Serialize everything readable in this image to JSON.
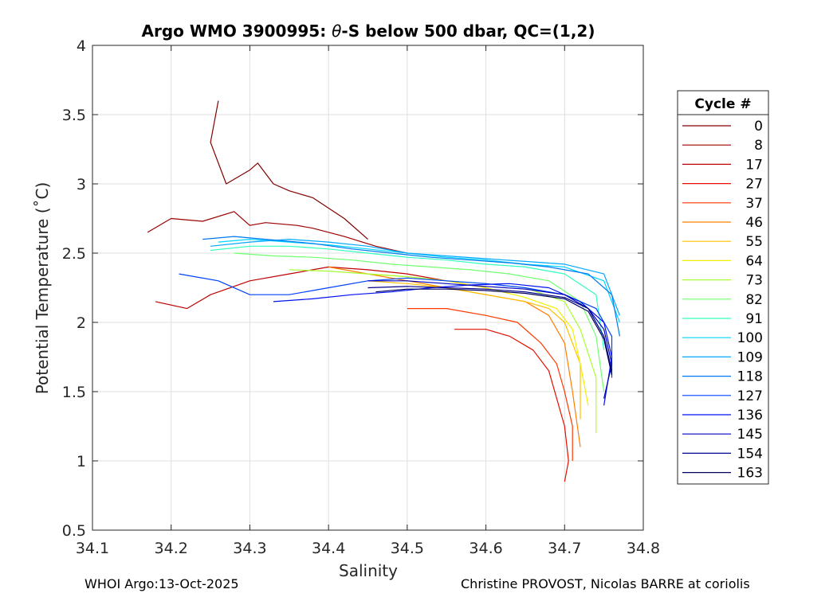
{
  "chart_data": {
    "type": "line",
    "title_prefix": "Argo WMO 3900995: ",
    "title_theta": "θ",
    "title_suffix": "-S below 500 dbar,  QC=(1,2)",
    "xlabel": "Salinity",
    "ylabel": "Potential Temperature (˚C)",
    "xlim": [
      34.1,
      34.8
    ],
    "ylim": [
      0.5,
      4
    ],
    "xticks": [
      34.1,
      34.2,
      34.3,
      34.4,
      34.5,
      34.6,
      34.7,
      34.8
    ],
    "yticks": [
      0.5,
      1,
      1.5,
      2,
      2.5,
      3,
      3.5,
      4
    ],
    "xtick_labels": [
      "34.1",
      "34.2",
      "34.3",
      "34.4",
      "34.5",
      "34.6",
      "34.7",
      "34.8"
    ],
    "ytick_labels": [
      "0.5",
      "1",
      "1.5",
      "2",
      "2.5",
      "3",
      "3.5",
      "4"
    ],
    "grid": true,
    "legend_title": "Cycle #",
    "legend_position": "right, outside",
    "legend": [
      {
        "cycle": "0",
        "color": "#800000"
      },
      {
        "cycle": "8",
        "color": "#9b0000"
      },
      {
        "cycle": "17",
        "color": "#bf0000"
      },
      {
        "cycle": "27",
        "color": "#e31000"
      },
      {
        "cycle": "37",
        "color": "#ff3700"
      },
      {
        "cycle": "46",
        "color": "#ff7f00"
      },
      {
        "cycle": "55",
        "color": "#ffbf00"
      },
      {
        "cycle": "64",
        "color": "#f0f000"
      },
      {
        "cycle": "73",
        "color": "#a6ff33"
      },
      {
        "cycle": "82",
        "color": "#6fff6f"
      },
      {
        "cycle": "91",
        "color": "#30ffc0"
      },
      {
        "cycle": "100",
        "color": "#00d4ff"
      },
      {
        "cycle": "109",
        "color": "#00a8ff"
      },
      {
        "cycle": "118",
        "color": "#0078f0"
      },
      {
        "cycle": "127",
        "color": "#0040ff"
      },
      {
        "cycle": "136",
        "color": "#0010f0"
      },
      {
        "cycle": "145",
        "color": "#0000c0"
      },
      {
        "cycle": "154",
        "color": "#00008b"
      },
      {
        "cycle": "163",
        "color": "#000060"
      }
    ],
    "series": [
      {
        "name": "0",
        "color": "#800000",
        "x": [
          34.26,
          34.25,
          34.27,
          34.3,
          34.31,
          34.33,
          34.35,
          34.38,
          34.42,
          34.45
        ],
        "y": [
          3.6,
          3.3,
          3.0,
          3.1,
          3.15,
          3.0,
          2.95,
          2.9,
          2.75,
          2.6
        ]
      },
      {
        "name": "8",
        "color": "#9b0000",
        "x": [
          34.17,
          34.2,
          34.24,
          34.28,
          34.3,
          34.32,
          34.36,
          34.38,
          34.42,
          34.46,
          34.5
        ],
        "y": [
          2.65,
          2.75,
          2.73,
          2.8,
          2.7,
          2.72,
          2.7,
          2.68,
          2.62,
          2.55,
          2.5
        ]
      },
      {
        "name": "17",
        "color": "#bf0000",
        "x": [
          34.18,
          34.22,
          34.25,
          34.3,
          34.35,
          34.4,
          34.45,
          34.5,
          34.55,
          34.6
        ],
        "y": [
          2.15,
          2.1,
          2.2,
          2.3,
          2.35,
          2.4,
          2.38,
          2.35,
          2.3,
          2.25
        ]
      },
      {
        "name": "27",
        "color": "#e31000",
        "x": [
          34.56,
          34.6,
          34.63,
          34.66,
          34.68,
          34.69,
          34.7,
          34.705,
          34.7
        ],
        "y": [
          1.95,
          1.95,
          1.9,
          1.8,
          1.65,
          1.45,
          1.25,
          1.0,
          0.85
        ]
      },
      {
        "name": "37",
        "color": "#ff3700",
        "x": [
          34.5,
          34.55,
          34.6,
          34.64,
          34.67,
          34.69,
          34.7,
          34.71,
          34.71
        ],
        "y": [
          2.1,
          2.1,
          2.05,
          2.0,
          1.85,
          1.7,
          1.5,
          1.25,
          1.0
        ]
      },
      {
        "name": "46",
        "color": "#ff7f00",
        "x": [
          34.4,
          34.45,
          34.5,
          34.55,
          34.6,
          34.65,
          34.68,
          34.7,
          34.71,
          34.72
        ],
        "y": [
          2.4,
          2.35,
          2.3,
          2.25,
          2.2,
          2.15,
          2.05,
          1.85,
          1.5,
          1.1
        ]
      },
      {
        "name": "55",
        "color": "#ffbf00",
        "x": [
          34.45,
          34.5,
          34.55,
          34.6,
          34.65,
          34.68,
          34.7,
          34.72,
          34.72
        ],
        "y": [
          2.3,
          2.28,
          2.25,
          2.2,
          2.15,
          2.1,
          2.0,
          1.7,
          1.3
        ]
      },
      {
        "name": "64",
        "color": "#f0f000",
        "x": [
          34.45,
          34.5,
          34.55,
          34.6,
          34.65,
          34.69,
          34.71,
          34.72,
          34.73
        ],
        "y": [
          2.35,
          2.33,
          2.3,
          2.25,
          2.18,
          2.1,
          1.95,
          1.7,
          1.4
        ]
      },
      {
        "name": "73",
        "color": "#a6ff33",
        "x": [
          34.35,
          34.4,
          34.45,
          34.5,
          34.55,
          34.6,
          34.65,
          34.7,
          34.72,
          34.74,
          34.74
        ],
        "y": [
          2.38,
          2.37,
          2.35,
          2.33,
          2.3,
          2.28,
          2.25,
          2.15,
          1.95,
          1.6,
          1.2
        ]
      },
      {
        "name": "82",
        "color": "#6fff6f",
        "x": [
          34.28,
          34.33,
          34.38,
          34.43,
          34.48,
          34.53,
          34.58,
          34.63,
          34.68,
          34.72,
          34.74,
          34.75
        ],
        "y": [
          2.5,
          2.48,
          2.47,
          2.45,
          2.42,
          2.4,
          2.38,
          2.35,
          2.3,
          2.15,
          1.9,
          1.5
        ]
      },
      {
        "name": "91",
        "color": "#30ffc0",
        "x": [
          34.25,
          34.3,
          34.35,
          34.4,
          34.45,
          34.5,
          34.55,
          34.6,
          34.65,
          34.7,
          34.74,
          34.75
        ],
        "y": [
          2.52,
          2.55,
          2.55,
          2.53,
          2.5,
          2.47,
          2.45,
          2.42,
          2.4,
          2.35,
          2.2,
          1.8
        ]
      },
      {
        "name": "100",
        "color": "#00d4ff",
        "x": [
          34.26,
          34.3,
          34.35,
          34.4,
          34.45,
          34.5,
          34.55,
          34.6,
          34.65,
          34.7,
          34.75,
          34.77
        ],
        "y": [
          2.58,
          2.6,
          2.58,
          2.56,
          2.53,
          2.5,
          2.47,
          2.45,
          2.42,
          2.4,
          2.3,
          2.0
        ]
      },
      {
        "name": "109",
        "color": "#00a8ff",
        "x": [
          34.25,
          34.3,
          34.35,
          34.4,
          34.45,
          34.5,
          34.55,
          34.6,
          34.65,
          34.7,
          34.75,
          34.77
        ],
        "y": [
          2.55,
          2.58,
          2.6,
          2.58,
          2.55,
          2.5,
          2.48,
          2.46,
          2.44,
          2.42,
          2.35,
          2.05
        ]
      },
      {
        "name": "118",
        "color": "#0078f0",
        "x": [
          34.24,
          34.28,
          34.32,
          34.38,
          34.43,
          34.48,
          34.53,
          34.58,
          34.63,
          34.68,
          34.73,
          34.76,
          34.77
        ],
        "y": [
          2.6,
          2.62,
          2.6,
          2.57,
          2.53,
          2.5,
          2.47,
          2.45,
          2.43,
          2.4,
          2.35,
          2.2,
          1.9
        ]
      },
      {
        "name": "127",
        "color": "#0040ff",
        "x": [
          34.21,
          34.26,
          34.3,
          34.35,
          34.4,
          34.45,
          34.5,
          34.55,
          34.6,
          34.65,
          34.7,
          34.74,
          34.76,
          34.76
        ],
        "y": [
          2.35,
          2.3,
          2.2,
          2.2,
          2.25,
          2.3,
          2.32,
          2.3,
          2.28,
          2.25,
          2.2,
          2.1,
          1.9,
          1.6
        ]
      },
      {
        "name": "136",
        "color": "#0010f0",
        "x": [
          34.33,
          34.38,
          34.43,
          34.48,
          34.53,
          34.58,
          34.63,
          34.68,
          34.72,
          34.75,
          34.76,
          34.75
        ],
        "y": [
          2.15,
          2.17,
          2.2,
          2.22,
          2.25,
          2.27,
          2.28,
          2.25,
          2.15,
          2.0,
          1.75,
          1.4
        ]
      },
      {
        "name": "145",
        "color": "#0000c0",
        "x": [
          34.45,
          34.5,
          34.55,
          34.6,
          34.65,
          34.7,
          34.73,
          34.75,
          34.76,
          34.75
        ],
        "y": [
          2.3,
          2.3,
          2.28,
          2.26,
          2.24,
          2.2,
          2.1,
          1.95,
          1.7,
          1.45
        ]
      },
      {
        "name": "154",
        "color": "#00008b",
        "x": [
          34.45,
          34.5,
          34.55,
          34.6,
          34.65,
          34.7,
          34.73,
          34.75,
          34.76
        ],
        "y": [
          2.25,
          2.26,
          2.25,
          2.24,
          2.22,
          2.18,
          2.1,
          1.9,
          1.65
        ]
      },
      {
        "name": "163",
        "color": "#000060",
        "x": [
          34.46,
          34.5,
          34.55,
          34.6,
          34.65,
          34.7,
          34.73,
          34.75,
          34.76
        ],
        "y": [
          2.22,
          2.24,
          2.24,
          2.23,
          2.21,
          2.17,
          2.08,
          1.88,
          1.62
        ]
      }
    ]
  },
  "footer": {
    "left": "WHOI Argo:13-Oct-2025",
    "right": "Christine PROVOST, Nicolas BARRE at coriolis"
  }
}
